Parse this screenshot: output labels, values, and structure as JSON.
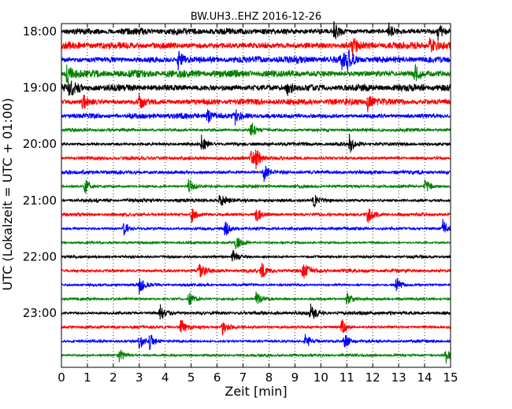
{
  "chart_data": {
    "type": "line",
    "title": "BW.UH3..EHZ 2016-12-26",
    "xlabel": "Zeit  [min]",
    "ylabel": "UTC (Lokalzeit = UTC + 01:00)",
    "xlim": [
      0,
      15
    ],
    "x_ticks": [
      "0",
      "1",
      "2",
      "3",
      "4",
      "5",
      "6",
      "7",
      "8",
      "9",
      "10",
      "11",
      "12",
      "13",
      "14",
      "15"
    ],
    "y_tick_labels": [
      "18:00",
      "19:00",
      "20:00",
      "21:00",
      "22:00",
      "23:00"
    ],
    "y_tick_rows": [
      0,
      4,
      8,
      12,
      16,
      20
    ],
    "row_interval_minutes": 15,
    "start_time": "18:00",
    "row_count": 24,
    "grid": "vertical dotted",
    "line_colors": [
      "#000000",
      "#ff0000",
      "#0000ff",
      "#008000"
    ],
    "series": [
      {
        "row": 0,
        "start": "18:00",
        "amplitude": 0.55,
        "events": [
          10.5,
          12.6,
          14.5
        ]
      },
      {
        "row": 1,
        "start": "18:15",
        "amplitude": 0.65,
        "events": [
          11.2,
          14.2
        ]
      },
      {
        "row": 2,
        "start": "18:30",
        "amplitude": 0.6,
        "events": [
          4.5,
          10.8,
          11.0
        ]
      },
      {
        "row": 3,
        "start": "18:45",
        "amplitude": 0.65,
        "events": [
          0.2,
          13.6
        ]
      },
      {
        "row": 4,
        "start": "19:00",
        "amplitude": 0.65,
        "events": [
          0.3,
          8.7
        ]
      },
      {
        "row": 5,
        "start": "19:15",
        "amplitude": 0.55,
        "events": [
          0.8,
          3.0,
          11.8
        ]
      },
      {
        "row": 6,
        "start": "19:30",
        "amplitude": 0.45,
        "events": [
          5.6,
          6.7
        ]
      },
      {
        "row": 7,
        "start": "19:45",
        "amplitude": 0.3,
        "events": [
          7.3
        ]
      },
      {
        "row": 8,
        "start": "20:00",
        "amplitude": 0.3,
        "events": [
          5.4,
          11.1
        ]
      },
      {
        "row": 9,
        "start": "20:15",
        "amplitude": 0.3,
        "events": [
          7.3,
          7.5
        ]
      },
      {
        "row": 10,
        "start": "20:30",
        "amplitude": 0.35,
        "events": [
          7.8
        ]
      },
      {
        "row": 11,
        "start": "20:45",
        "amplitude": 0.25,
        "events": [
          0.9,
          4.9,
          14.0
        ]
      },
      {
        "row": 12,
        "start": "21:00",
        "amplitude": 0.3,
        "events": [
          6.1,
          9.7
        ]
      },
      {
        "row": 13,
        "start": "21:15",
        "amplitude": 0.3,
        "events": [
          5.0,
          7.5,
          11.8
        ]
      },
      {
        "row": 14,
        "start": "21:30",
        "amplitude": 0.25,
        "events": [
          2.4,
          6.3,
          14.7
        ]
      },
      {
        "row": 15,
        "start": "21:45",
        "amplitude": 0.2,
        "events": [
          6.7
        ]
      },
      {
        "row": 16,
        "start": "22:00",
        "amplitude": 0.25,
        "events": [
          6.6
        ]
      },
      {
        "row": 17,
        "start": "22:15",
        "amplitude": 0.3,
        "events": [
          5.3,
          7.7,
          9.3
        ]
      },
      {
        "row": 18,
        "start": "22:30",
        "amplitude": 0.22,
        "events": [
          3.0,
          12.9
        ]
      },
      {
        "row": 19,
        "start": "22:45",
        "amplitude": 0.22,
        "events": [
          4.9,
          7.5,
          11.0
        ]
      },
      {
        "row": 20,
        "start": "23:00",
        "amplitude": 0.3,
        "events": [
          3.8,
          9.6
        ]
      },
      {
        "row": 21,
        "start": "23:15",
        "amplitude": 0.25,
        "events": [
          4.6,
          6.2,
          10.8
        ]
      },
      {
        "row": 22,
        "start": "23:30",
        "amplitude": 0.25,
        "events": [
          3.0,
          3.4,
          9.4,
          10.9
        ]
      },
      {
        "row": 23,
        "start": "23:45",
        "amplitude": 0.22,
        "events": [
          2.2,
          14.8
        ]
      }
    ]
  }
}
